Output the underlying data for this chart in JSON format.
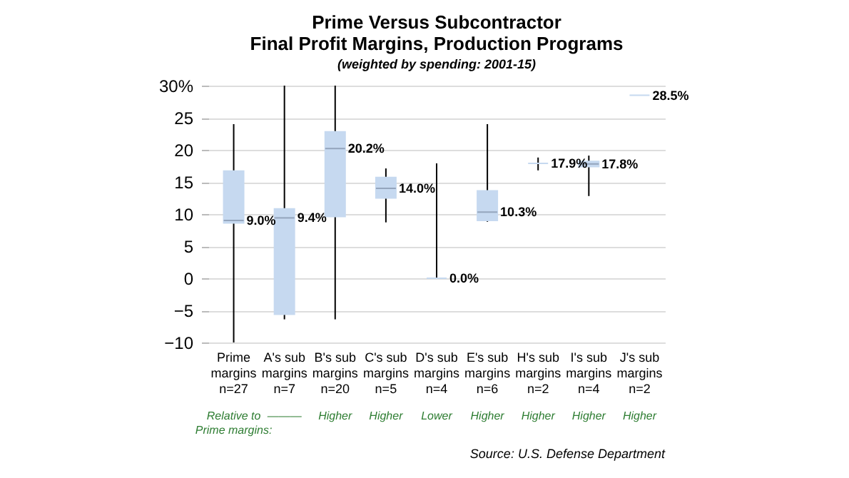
{
  "chart_data": {
    "type": "box",
    "title": [
      "Prime Versus Subcontractor",
      "Final Profit Margins, Production Programs"
    ],
    "subtitle": "(weighted by spending: 2001-15)",
    "categories": [
      "Prime\nmargins\nn=27",
      "A's sub\nmargins\nn=7",
      "B's sub\nmargins\nn=20",
      "C's sub\nmargins\nn=5",
      "D's sub\nmargins\nn=4",
      "E's sub\nmargins\nn=6",
      "H's sub\nmargins\nn=2",
      "I's sub\nmargins\nn=4",
      "J's sub\nmargins\nn=2"
    ],
    "series": [
      {
        "color": "#c6d9f0",
        "value_labels": [
          "9.0%",
          "9.4%",
          "20.2%",
          "14.0%",
          "0.0%",
          "10.3%",
          "17.9%",
          "17.8%",
          "28.5%"
        ],
        "boxes": [
          {
            "low": -10,
            "q1": 8.6,
            "median": 9.0,
            "q3": 16.7,
            "high": 24
          },
          {
            "low": -6.4,
            "q1": -5.6,
            "median": 9.4,
            "q3": 10.8,
            "high": 30
          },
          {
            "low": -6.4,
            "q1": 9.6,
            "median": 20.2,
            "q3": 22.8,
            "high": 30
          },
          {
            "low": 8.7,
            "q1": 12.5,
            "median": 14.0,
            "q3": 15.7,
            "high": 17.1
          },
          {
            "low": 0,
            "q1": 0,
            "median": 0.0,
            "q3": 0,
            "high": 17.9
          },
          {
            "low": 8.8,
            "q1": 9.0,
            "median": 10.3,
            "q3": 13.6,
            "high": 24.0
          },
          {
            "low": 16.8,
            "q1": 17.9,
            "median": 17.9,
            "q3": 17.9,
            "high": 18.8
          },
          {
            "low": 12.8,
            "q1": 17.4,
            "median": 17.8,
            "q3": 18.2,
            "high": 19.1
          },
          {
            "low": 28.5,
            "q1": 28.5,
            "median": 28.5,
            "q3": 28.5,
            "high": 28.5
          }
        ]
      }
    ],
    "ylim": [
      -10,
      30
    ],
    "yticks": [
      -10,
      -5,
      0,
      5,
      10,
      15,
      20,
      25,
      {
        "value": 30,
        "label": "30%"
      }
    ],
    "grid": "y",
    "annotations": [
      "Relative to\nPrime margins:",
      "———",
      "Higher",
      "Higher",
      "Lower",
      "Higher",
      "Higher",
      "Higher",
      "Higher",
      "Source: U.S. Defense Department"
    ]
  }
}
